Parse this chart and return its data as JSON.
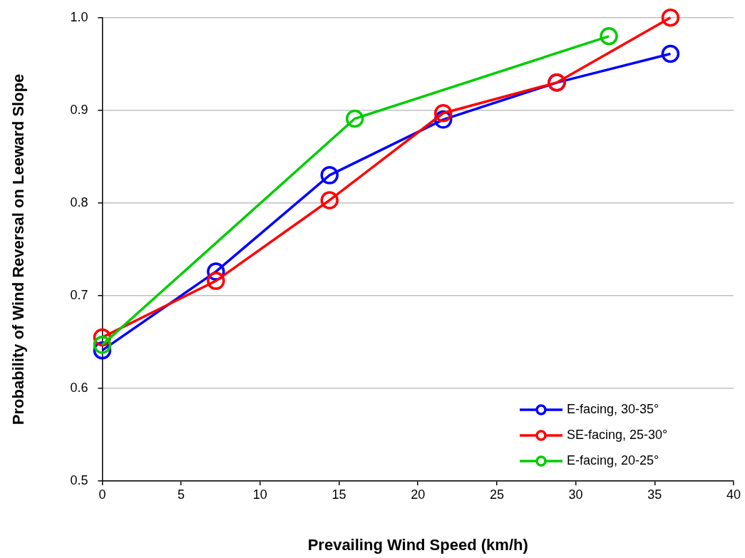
{
  "chart_data": {
    "type": "line",
    "xlabel": "Prevailing Wind Speed (km/h)",
    "ylabel": "Probability of Wind Reversal on Leeward Slope",
    "xlim": [
      0,
      40
    ],
    "xticks": [
      0,
      5,
      10,
      15,
      20,
      25,
      30,
      35,
      40
    ],
    "ylim": [
      0.5,
      1.0
    ],
    "yticks": [
      {
        "value": 0.5,
        "label": "0.5"
      },
      {
        "value": 0.6,
        "label": "0.6"
      },
      {
        "value": 0.7,
        "label": "0.7"
      },
      {
        "value": 0.8,
        "label": "0.8"
      },
      {
        "value": 0.9,
        "label": "0.9"
      },
      {
        "value": 1.0,
        "label": "1.0"
      }
    ],
    "grid": "y",
    "legend": "bottom right",
    "marker": "circle",
    "line_style": "solid",
    "series": [
      {
        "name": "E-facing, 30-35°",
        "color": "#0000ff",
        "x": [
          0,
          7.2,
          14.4,
          21.6,
          28.8,
          36
        ],
        "values": [
          0.641,
          0.726,
          0.83,
          0.89,
          0.93,
          0.961
        ]
      },
      {
        "name": "SE-facing, 25-30°",
        "color": "#ff0000",
        "x": [
          0,
          7.2,
          14.4,
          21.6,
          28.8,
          36
        ],
        "values": [
          0.655,
          0.716,
          0.803,
          0.897,
          0.93,
          1.0
        ]
      },
      {
        "name": "E-facing, 20-25°",
        "color": "#00cc00",
        "x": [
          0,
          16,
          32.1
        ],
        "values": [
          0.647,
          0.891,
          0.98
        ]
      }
    ]
  }
}
